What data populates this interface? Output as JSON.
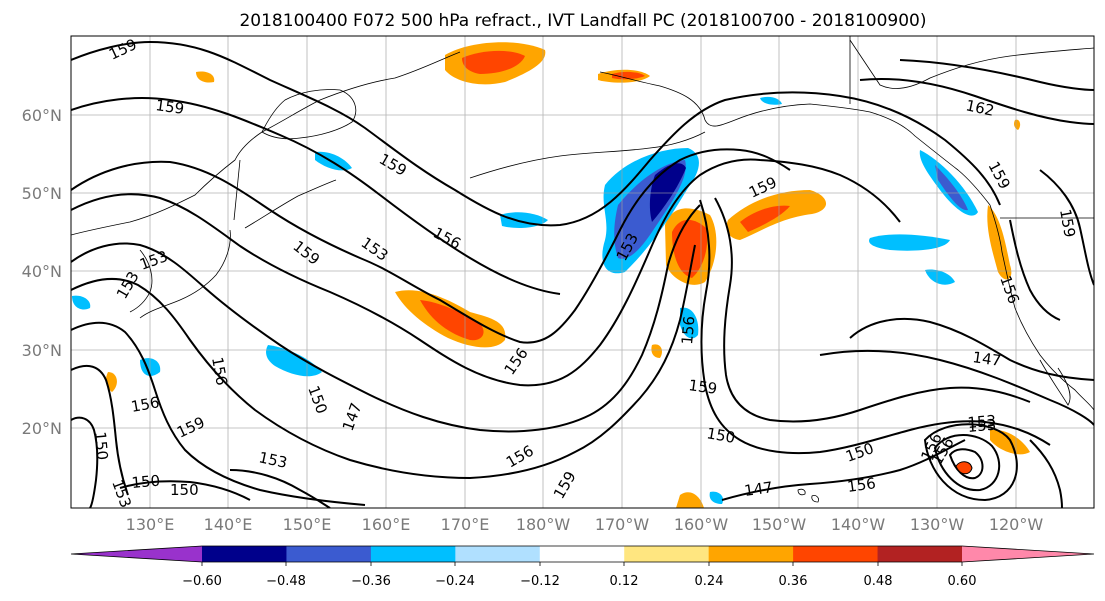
{
  "title": "2018100400 F072 500 hPa refract., IVT Landfall PC (2018100700 - 2018100900)",
  "lat_labels": [
    "60°N",
    "50°N",
    "40°N",
    "30°N",
    "20°N"
  ],
  "lon_labels": [
    "130°E",
    "140°E",
    "150°E",
    "160°E",
    "170°E",
    "180°W",
    "170°W",
    "160°W",
    "150°W",
    "140°W",
    "130°W",
    "120°W"
  ],
  "colorbar": {
    "tick_labels": [
      "−0.60",
      "−0.48",
      "−0.36",
      "−0.24",
      "−0.12",
      "0.12",
      "0.24",
      "0.36",
      "0.48",
      "0.60"
    ],
    "colors": [
      "#9932CC",
      "#00008B",
      "#3B5BD0",
      "#00BFFF",
      "#B0E0FF",
      "#FFFFFF",
      "#FFE680",
      "#FFA500",
      "#FF4500",
      "#B22222",
      "#FF88AA"
    ]
  },
  "contour_labels": [
    "159",
    "159",
    "159",
    "159",
    "159",
    "159",
    "159",
    "159",
    "159",
    "159",
    "162",
    "156",
    "156",
    "156",
    "156",
    "156",
    "156",
    "156",
    "156",
    "156",
    "153",
    "153",
    "153",
    "153",
    "153",
    "153",
    "153",
    "150",
    "150",
    "150",
    "150",
    "150",
    "150",
    "147",
    "147",
    "147",
    "156",
    "153"
  ],
  "colors": {
    "contour": "#000000",
    "coast": "#000000",
    "grid": "#a0a0a0"
  }
}
